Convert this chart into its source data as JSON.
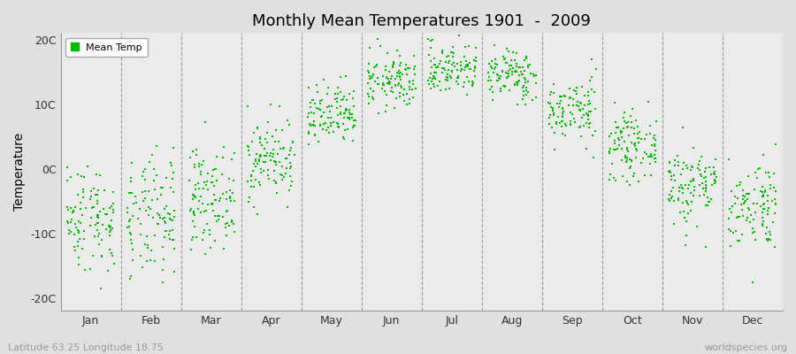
{
  "title": "Monthly Mean Temperatures 1901  -  2009",
  "ylabel": "Temperature",
  "xlabel_labels": [
    "Jan",
    "Feb",
    "Mar",
    "Apr",
    "May",
    "Jun",
    "Jul",
    "Aug",
    "Sep",
    "Oct",
    "Nov",
    "Dec"
  ],
  "ylim": [
    -22,
    21
  ],
  "yticks": [
    -20,
    -10,
    0,
    10,
    20
  ],
  "ytick_labels": [
    "-20C",
    "-10C",
    "0C",
    "10C",
    "20C"
  ],
  "dot_color": "#00bb00",
  "fig_bg_color": "#e0e0e0",
  "plot_bg_color": "#ebebeb",
  "legend_label": "Mean Temp",
  "footer_left": "Latitude 63.25 Longitude 18.75",
  "footer_right": "worldspecies.org",
  "monthly_means": [
    -7.5,
    -8.0,
    -4.5,
    1.5,
    8.0,
    13.5,
    15.5,
    14.5,
    9.0,
    3.5,
    -2.5,
    -5.5
  ],
  "monthly_stds": [
    4.2,
    4.8,
    3.8,
    3.2,
    2.5,
    2.2,
    2.0,
    2.0,
    2.5,
    2.5,
    3.2,
    3.5
  ],
  "n_years": 109,
  "seed": 42,
  "dot_size": 4,
  "title_fontsize": 13,
  "axis_fontsize": 9,
  "footer_fontsize": 8
}
